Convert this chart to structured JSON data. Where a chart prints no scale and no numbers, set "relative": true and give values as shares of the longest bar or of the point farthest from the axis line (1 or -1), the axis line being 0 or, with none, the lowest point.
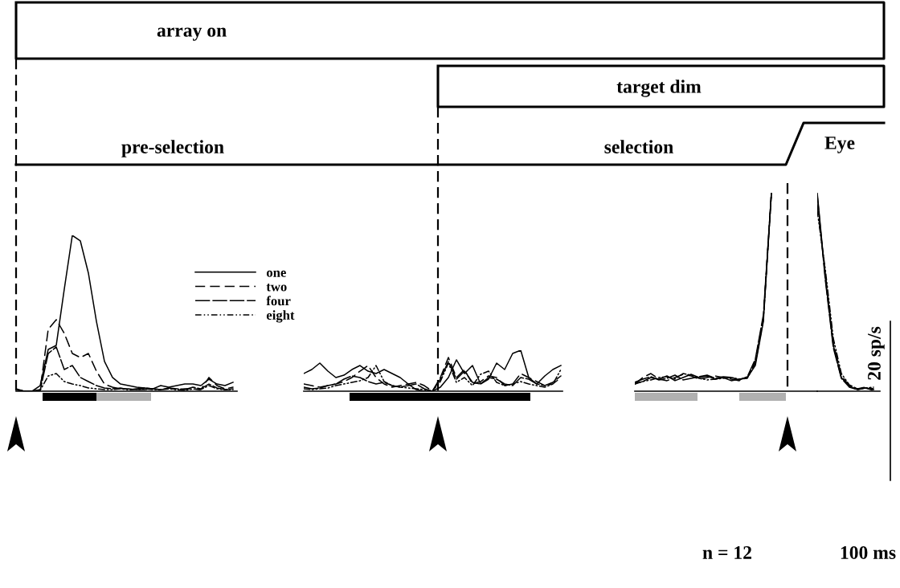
{
  "chart_data": [
    {
      "type": "line",
      "relative": true,
      "legend": "top right",
      "categories": [
        null,
        null,
        null,
        null,
        null,
        null,
        null,
        null,
        null,
        null,
        null,
        null,
        null,
        null,
        null,
        null,
        null,
        null,
        null,
        null,
        null,
        null,
        null,
        null,
        null,
        null,
        null,
        null
      ],
      "series": [
        {
          "name": "one",
          "color": "#000000",
          "line_style": "solid",
          "values": [
            0.015,
            0,
            0,
            0.036,
            0.268,
            0.294,
            0.655,
            1,
            0.964,
            0.758,
            0.448,
            0.191,
            0.088,
            0.046,
            0.036,
            0.026,
            0.021,
            0.015,
            0.036,
            0.026,
            0.036,
            0.046,
            0.046,
            0.036,
            0.077,
            0.046,
            0.036,
            0.057
          ]
        },
        {
          "name": "two",
          "color": "#000000",
          "line_style": "dashed",
          "values": [
            0.01,
            0,
            0,
            0.01,
            0.397,
            0.459,
            0.371,
            0.242,
            0.216,
            0.242,
            0.129,
            0.046,
            0.026,
            0.015,
            0.015,
            0.01,
            0.01,
            0.015,
            0.01,
            0.021,
            0.01,
            0.015,
            0.015,
            0.01,
            0.088,
            0.036,
            0.015,
            0.026
          ]
        },
        {
          "name": "four",
          "color": "#000000",
          "line_style": "dotted",
          "values": [
            0.01,
            0,
            0,
            0.005,
            0.242,
            0.284,
            0.139,
            0.165,
            0.088,
            0.062,
            0.036,
            0.021,
            0.015,
            0.021,
            0.01,
            0.015,
            0.021,
            0.015,
            0.01,
            0.021,
            0.015,
            0.01,
            0.026,
            0.015,
            0.046,
            0.021,
            0.01,
            0.015
          ]
        },
        {
          "name": "eight",
          "color": "#000000",
          "line_style": "dashdot",
          "values": [
            0.01,
            0,
            0,
            0.005,
            0.098,
            0.113,
            0.062,
            0.046,
            0.036,
            0.021,
            0.015,
            0.01,
            0.01,
            0.015,
            0.01,
            0.01,
            0.015,
            0.01,
            0.01,
            0.015,
            0.01,
            0.005,
            0.015,
            0.01,
            0.036,
            0.015,
            0.01,
            0.01
          ]
        }
      ],
      "annotations": [
        "array on",
        "target dim",
        "pre-selection",
        "selection",
        "Eye"
      ]
    },
    {
      "type": "line",
      "relative": true,
      "categories": [
        null,
        null,
        null,
        null,
        null,
        null,
        null,
        null,
        null,
        null,
        null,
        null,
        null,
        null,
        null,
        null,
        null,
        null,
        null,
        null,
        null,
        null,
        null,
        null,
        null,
        null,
        null,
        null,
        null,
        null,
        null,
        null,
        null
      ],
      "series": [
        {
          "color": "#000000",
          "line_style": "solid",
          "values": [
            0.431,
            0.529,
            0.686,
            0.49,
            0.333,
            0.392,
            0.529,
            0.627,
            0.49,
            0.431,
            0.529,
            0.431,
            0.333,
            0.176,
            0.039,
            0,
            0,
            0.098,
            0.333,
            0.765,
            0.431,
            0.627,
            0.176,
            0.294,
            0.686,
            0.529,
            0.922,
            1,
            0.333,
            0.176,
            0.373,
            0.529,
            0.627
          ]
        },
        {
          "color": "#000000",
          "line_style": "dashed",
          "values": [
            0.176,
            0.137,
            0.098,
            0.137,
            0.176,
            0.235,
            0.333,
            0.49,
            0.627,
            0.333,
            0.176,
            0.098,
            0.137,
            0.176,
            0.216,
            0.137,
            0,
            0.333,
            0.824,
            0.333,
            0.529,
            0.176,
            0.235,
            0.373,
            0.333,
            0.137,
            0.176,
            0.431,
            0.333,
            0.235,
            0.137,
            0.176,
            0.333
          ]
        },
        {
          "color": "#000000",
          "line_style": "dotted",
          "values": [
            0.098,
            0.059,
            0.078,
            0.137,
            0.176,
            0.294,
            0.373,
            0.333,
            0.235,
            0.176,
            0.216,
            0.137,
            0.098,
            0.137,
            0.176,
            0.059,
            0,
            0.294,
            0.725,
            0.294,
            0.49,
            0.216,
            0.176,
            0.333,
            0.294,
            0.176,
            0.137,
            0.333,
            0.294,
            0.176,
            0.137,
            0.216,
            0.373
          ]
        },
        {
          "color": "#000000",
          "line_style": "dashdot",
          "values": [
            0.059,
            0.039,
            0.059,
            0.078,
            0.137,
            0.176,
            0.216,
            0.255,
            0.333,
            0.627,
            0.235,
            0.137,
            0.098,
            0.078,
            0.059,
            0.039,
            0,
            0.235,
            0.686,
            0.216,
            0.333,
            0.137,
            0.412,
            0.49,
            0.216,
            0.137,
            0.176,
            0.235,
            0.176,
            0.137,
            0.098,
            0.176,
            0.529
          ]
        }
      ]
    },
    {
      "type": "line",
      "relative": true,
      "categories": [
        null,
        null,
        null,
        null,
        null,
        null,
        null,
        null,
        null,
        null,
        null,
        null,
        null,
        null,
        null,
        null,
        null,
        null
      ],
      "series": [
        {
          "color": "#000000",
          "line_style": "solid",
          "values": [
            0.036,
            0.049,
            0.069,
            0.061,
            0.077,
            0.053,
            0.069,
            0.085,
            0.069,
            0.077,
            0.061,
            0.069,
            0.053,
            0.061,
            0.069,
            0.13,
            0.352,
            1
          ]
        },
        {
          "color": "#000000",
          "line_style": "dashed",
          "values": [
            0.036,
            0.069,
            0.089,
            0.061,
            0.053,
            0.069,
            0.085,
            0.077,
            0.061,
            0.069,
            0.077,
            0.069,
            0.061,
            0.053,
            0.069,
            0.15,
            0.372,
            1
          ]
        },
        {
          "color": "#000000",
          "line_style": "dotted",
          "values": [
            0.045,
            0.061,
            0.073,
            0.057,
            0.065,
            0.081,
            0.057,
            0.065,
            0.073,
            0.081,
            0.065,
            0.073,
            0.069,
            0.057,
            0.073,
            0.162,
            0.385,
            1
          ]
        },
        {
          "color": "#000000",
          "line_style": "dashdot",
          "values": [
            0.04,
            0.049,
            0.057,
            0.069,
            0.073,
            0.061,
            0.089,
            0.081,
            0.065,
            0.057,
            0.061,
            0.065,
            0.069,
            0.061,
            0.065,
            0.142,
            0.36,
            1
          ]
        }
      ],
      "annotations": [
        "20 sp/s",
        "n = 12",
        "100 ms"
      ]
    },
    {
      "type": "line",
      "relative": true,
      "categories": [
        null,
        null,
        null,
        null,
        null,
        null,
        null,
        null
      ],
      "series": [
        {
          "color": "#000000",
          "line_style": "solid",
          "values": [
            1,
            0.575,
            0.231,
            0.069,
            0.024,
            0.008,
            0.016,
            0.008
          ]
        },
        {
          "color": "#000000",
          "line_style": "dashed",
          "values": [
            0.94,
            0.595,
            0.243,
            0.077,
            0.028,
            0.012,
            0.02,
            0.012
          ]
        },
        {
          "color": "#000000",
          "line_style": "dotted",
          "values": [
            0.99,
            0.563,
            0.219,
            0.065,
            0.02,
            0.008,
            0.016,
            0.004
          ]
        },
        {
          "color": "#000000",
          "line_style": "dashdot",
          "values": [
            0.91,
            0.615,
            0.267,
            0.089,
            0.032,
            0.012,
            0.016,
            0.02
          ]
        }
      ]
    }
  ]
}
